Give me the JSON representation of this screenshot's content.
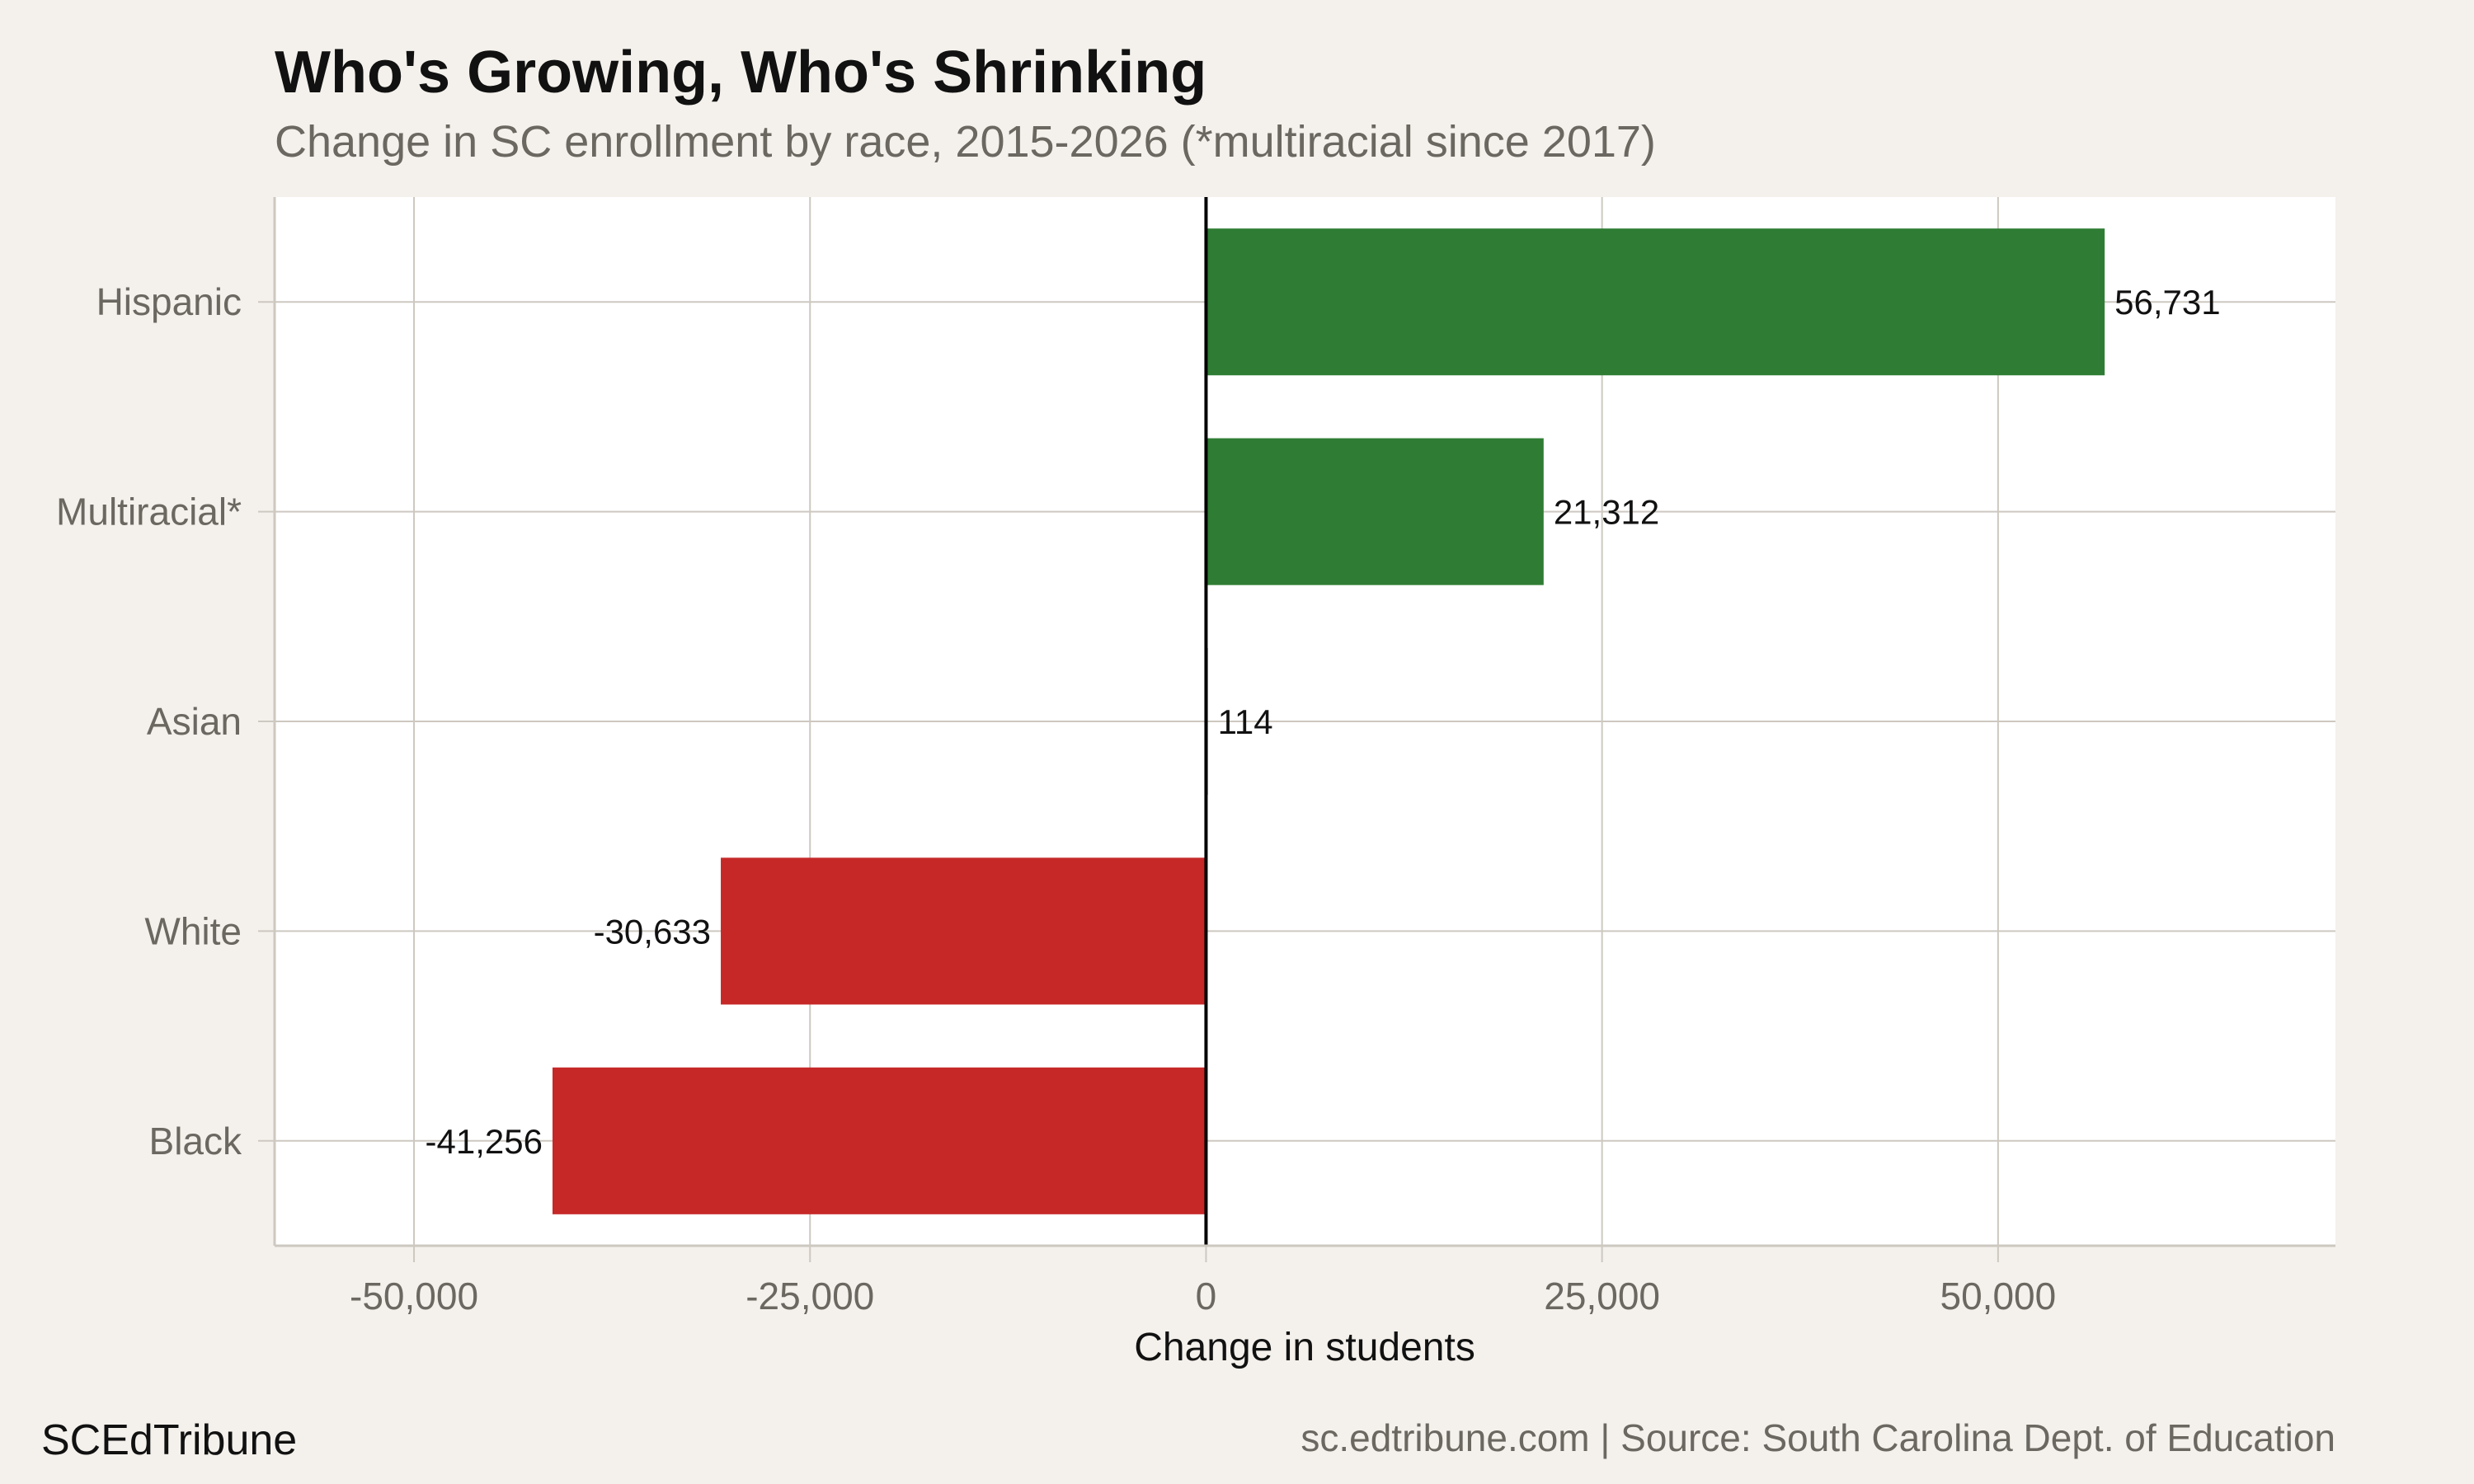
{
  "chart_data": {
    "type": "bar",
    "orientation": "horizontal",
    "title": "Who's Growing, Who's Shrinking",
    "subtitle": "Change in SC enrollment by race, 2015-2026 (*multiracial since 2017)",
    "xlabel": "Change in students",
    "ylabel": "",
    "categories": [
      "Hispanic",
      "Multiracial*",
      "Asian",
      "White",
      "Black"
    ],
    "values": [
      56731,
      21312,
      114,
      -30633,
      -41256
    ],
    "value_labels": [
      "56,731",
      "21,312",
      "114",
      "-30,633",
      "-41,256"
    ],
    "xlim": [
      -58800,
      71300
    ],
    "xticks": [
      -50000,
      -25000,
      0,
      25000,
      50000
    ],
    "xtick_labels": [
      "-50,000",
      "-25,000",
      "0",
      "25,000",
      "50,000"
    ],
    "grid": true,
    "colors": {
      "positive": "#2f7d34",
      "negative": "#c62828",
      "background": "#f4f1ec",
      "panel": "#ffffff",
      "grid": "#cdc8c0",
      "zero_line": "#000000"
    }
  },
  "footer": {
    "brand": "SCEdTribune",
    "source": "sc.edtribune.com | Source: South Carolina Dept. of Education"
  }
}
